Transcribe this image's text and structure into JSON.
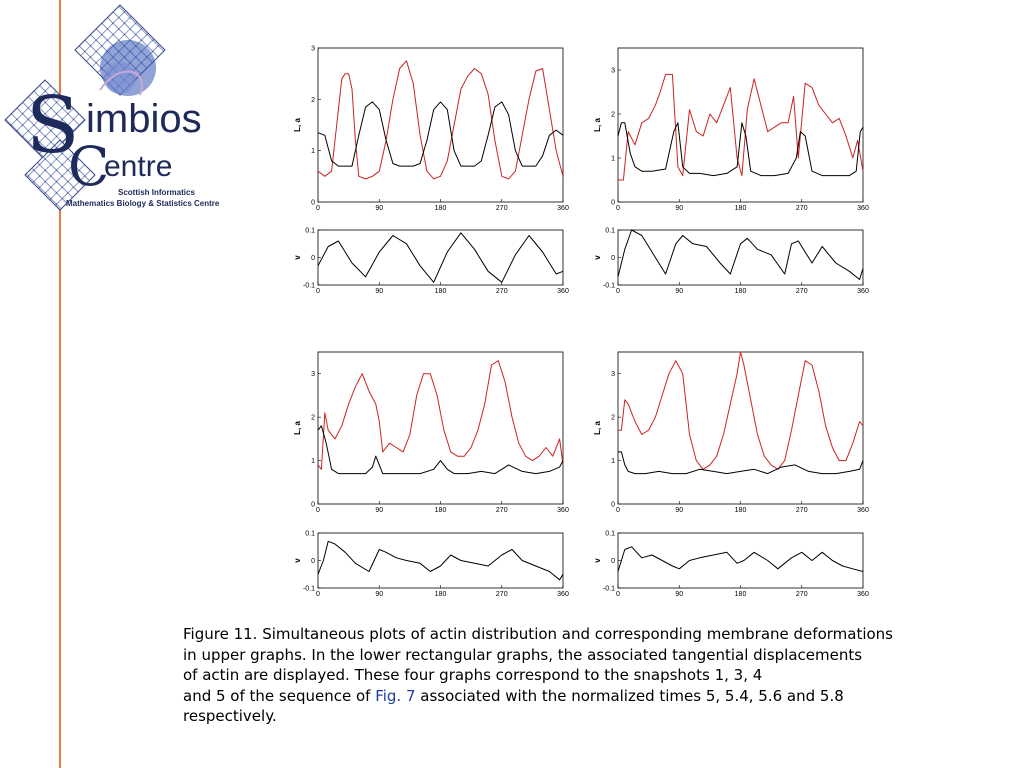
{
  "logo": {
    "line1": "imbios",
    "line2": "entre",
    "letter_s": "S",
    "letter_c": "C",
    "sub1": "Scottish Informatics",
    "sub2": "Mathematics Biology & Statistics Centre",
    "colors": {
      "navy": "#1e2a5a",
      "mesh": "#5a6fb4"
    }
  },
  "caption": {
    "line1": "Figure 11. Simultaneous plots of actin distribution and corresponding membrane deformations",
    "line2": "in upper graphs. In the lower rectangular graphs, the associated tangential displacements",
    "line3": "of actin are displayed. These four graphs correspond to the snapshots 1, 3, 4",
    "line4_pre": "and 5 of the sequence of ",
    "line4_link": "Fig. 7",
    "line4_post": " associated with the normalized times 5, 5.4, 5.6 and 5.8",
    "line5": "respectively."
  },
  "colors": {
    "red_series": "#cc2222",
    "black_series": "#000000",
    "divider": "#f07a40"
  },
  "chart_data": [
    {
      "type": "line",
      "panel": "top-left upper",
      "ylabel": "L, a",
      "xlim": [
        0,
        360
      ],
      "ylim": [
        0,
        3
      ],
      "xticks": [
        "0",
        "90",
        "180",
        "270",
        "360"
      ],
      "yticks": [
        "0",
        "1",
        "2",
        "3"
      ],
      "series": [
        {
          "color": "red",
          "x": [
            0,
            10,
            20,
            30,
            35,
            40,
            45,
            50,
            55,
            60,
            70,
            80,
            90,
            100,
            110,
            120,
            130,
            140,
            150,
            160,
            170,
            180,
            190,
            200,
            210,
            220,
            230,
            240,
            250,
            260,
            270,
            280,
            290,
            300,
            310,
            320,
            330,
            340,
            350,
            360
          ],
          "y": [
            0.6,
            0.5,
            0.6,
            1.8,
            2.4,
            2.5,
            2.5,
            2.2,
            1.2,
            0.5,
            0.45,
            0.5,
            0.6,
            1.2,
            2.0,
            2.6,
            2.75,
            2.3,
            1.3,
            0.6,
            0.45,
            0.5,
            0.8,
            1.5,
            2.2,
            2.45,
            2.6,
            2.5,
            2.1,
            1.2,
            0.5,
            0.45,
            0.6,
            1.3,
            2.0,
            2.55,
            2.6,
            1.8,
            1.0,
            0.5
          ]
        },
        {
          "color": "black",
          "x": [
            0,
            10,
            20,
            30,
            40,
            50,
            60,
            70,
            80,
            90,
            100,
            110,
            120,
            130,
            140,
            150,
            160,
            170,
            180,
            190,
            200,
            210,
            220,
            230,
            240,
            250,
            260,
            270,
            280,
            290,
            300,
            310,
            320,
            330,
            340,
            350,
            360
          ],
          "y": [
            1.35,
            1.3,
            0.8,
            0.7,
            0.7,
            0.7,
            1.3,
            1.85,
            1.95,
            1.8,
            1.2,
            0.75,
            0.7,
            0.7,
            0.7,
            0.75,
            1.2,
            1.8,
            1.95,
            1.8,
            1.0,
            0.7,
            0.7,
            0.7,
            0.8,
            1.3,
            1.85,
            1.95,
            1.7,
            1.0,
            0.7,
            0.7,
            0.7,
            0.9,
            1.3,
            1.4,
            1.3
          ]
        }
      ]
    },
    {
      "type": "line",
      "panel": "top-left lower",
      "ylabel": "v",
      "xlim": [
        0,
        360
      ],
      "ylim": [
        -0.1,
        0.1
      ],
      "xticks": [
        "0",
        "90",
        "180",
        "270",
        "360"
      ],
      "yticks": [
        "-0.1",
        "0",
        "0.1"
      ],
      "series": [
        {
          "color": "black",
          "x": [
            0,
            15,
            30,
            50,
            70,
            90,
            110,
            130,
            150,
            170,
            190,
            210,
            230,
            250,
            270,
            290,
            310,
            330,
            350,
            360
          ],
          "y": [
            -0.03,
            0.04,
            0.06,
            -0.02,
            -0.07,
            0.02,
            0.08,
            0.05,
            -0.03,
            -0.09,
            0.02,
            0.09,
            0.03,
            -0.05,
            -0.09,
            0.01,
            0.08,
            0.02,
            -0.06,
            -0.05
          ]
        }
      ]
    },
    {
      "type": "line",
      "panel": "top-right upper",
      "ylabel": "L, a",
      "xlim": [
        0,
        360
      ],
      "ylim": [
        0,
        3.5
      ],
      "xticks": [
        "0",
        "90",
        "180",
        "270",
        "360"
      ],
      "yticks": [
        "0",
        "1",
        "2",
        "3"
      ],
      "series": [
        {
          "color": "red",
          "x": [
            0,
            8,
            15,
            25,
            35,
            45,
            55,
            62,
            70,
            80,
            88,
            95,
            105,
            115,
            125,
            135,
            145,
            155,
            165,
            175,
            182,
            190,
            200,
            210,
            220,
            230,
            240,
            250,
            258,
            265,
            275,
            285,
            295,
            305,
            315,
            325,
            335,
            345,
            352,
            360
          ],
          "y": [
            0.5,
            0.5,
            1.6,
            1.3,
            1.8,
            1.9,
            2.2,
            2.5,
            2.9,
            2.9,
            0.8,
            0.6,
            2.1,
            1.6,
            1.5,
            2.0,
            1.8,
            2.2,
            2.6,
            1.0,
            0.6,
            2.1,
            2.8,
            2.2,
            1.6,
            1.7,
            1.8,
            1.8,
            2.4,
            1.0,
            2.7,
            2.6,
            2.2,
            2.0,
            1.8,
            1.9,
            1.5,
            1.0,
            1.4,
            0.7
          ]
        },
        {
          "color": "black",
          "x": [
            0,
            5,
            10,
            18,
            25,
            35,
            50,
            70,
            82,
            88,
            95,
            105,
            120,
            140,
            160,
            175,
            182,
            188,
            195,
            210,
            230,
            250,
            262,
            268,
            275,
            285,
            300,
            320,
            340,
            350,
            356,
            360
          ],
          "y": [
            1.5,
            1.8,
            1.8,
            1.1,
            0.8,
            0.7,
            0.7,
            0.75,
            1.6,
            1.8,
            0.8,
            0.65,
            0.65,
            0.6,
            0.65,
            0.8,
            1.8,
            1.5,
            0.7,
            0.6,
            0.6,
            0.65,
            1.0,
            1.6,
            1.5,
            0.7,
            0.6,
            0.6,
            0.6,
            0.7,
            1.6,
            1.7
          ]
        }
      ]
    },
    {
      "type": "line",
      "panel": "top-right lower",
      "ylabel": "v",
      "xlim": [
        0,
        360
      ],
      "ylim": [
        -0.1,
        0.1
      ],
      "xticks": [
        "0",
        "90",
        "180",
        "270",
        "360"
      ],
      "yticks": [
        "-0.1",
        "0",
        "0.1"
      ],
      "series": [
        {
          "color": "black",
          "x": [
            0,
            10,
            20,
            35,
            55,
            70,
            85,
            95,
            110,
            130,
            150,
            165,
            180,
            190,
            205,
            225,
            245,
            255,
            265,
            285,
            300,
            320,
            340,
            355,
            360
          ],
          "y": [
            -0.07,
            0.03,
            0.1,
            0.08,
            0.0,
            -0.06,
            0.05,
            0.08,
            0.05,
            0.04,
            -0.02,
            -0.06,
            0.05,
            0.07,
            0.03,
            0.01,
            -0.06,
            0.05,
            0.06,
            -0.02,
            0.04,
            -0.02,
            -0.05,
            -0.08,
            -0.04
          ]
        }
      ]
    },
    {
      "type": "line",
      "panel": "bottom-left upper",
      "ylabel": "L, a",
      "xlim": [
        0,
        360
      ],
      "ylim": [
        0,
        3.5
      ],
      "xticks": [
        "0",
        "90",
        "180",
        "270",
        "360"
      ],
      "yticks": [
        "0",
        "1",
        "2",
        "3"
      ],
      "series": [
        {
          "color": "red",
          "x": [
            0,
            5,
            10,
            15,
            25,
            35,
            45,
            55,
            65,
            75,
            85,
            90,
            95,
            105,
            115,
            125,
            135,
            145,
            155,
            165,
            175,
            185,
            195,
            205,
            215,
            225,
            235,
            245,
            255,
            265,
            275,
            285,
            295,
            305,
            315,
            325,
            335,
            345,
            355,
            360
          ],
          "y": [
            0.9,
            0.8,
            2.1,
            1.7,
            1.5,
            1.8,
            2.3,
            2.7,
            3.0,
            2.6,
            2.3,
            1.9,
            1.2,
            1.4,
            1.3,
            1.2,
            1.6,
            2.5,
            3.0,
            3.0,
            2.5,
            1.7,
            1.2,
            1.1,
            1.1,
            1.3,
            1.7,
            2.3,
            3.2,
            3.3,
            2.8,
            2.0,
            1.4,
            1.1,
            1.0,
            1.1,
            1.3,
            1.1,
            1.5,
            0.9
          ]
        },
        {
          "color": "black",
          "x": [
            0,
            5,
            12,
            20,
            30,
            50,
            70,
            80,
            85,
            90,
            95,
            105,
            130,
            150,
            170,
            180,
            190,
            200,
            220,
            240,
            260,
            270,
            280,
            300,
            320,
            340,
            355,
            360
          ],
          "y": [
            1.7,
            1.8,
            1.4,
            0.8,
            0.7,
            0.7,
            0.7,
            0.85,
            1.1,
            0.9,
            0.7,
            0.7,
            0.7,
            0.7,
            0.8,
            1.0,
            0.8,
            0.7,
            0.7,
            0.75,
            0.7,
            0.8,
            0.9,
            0.75,
            0.7,
            0.75,
            0.85,
            1.0
          ]
        }
      ]
    },
    {
      "type": "line",
      "panel": "bottom-left lower",
      "ylabel": "v",
      "xlim": [
        0,
        360
      ],
      "ylim": [
        -0.1,
        0.1
      ],
      "xticks": [
        "0",
        "90",
        "180",
        "270",
        "360"
      ],
      "yticks": [
        "-0.1",
        "0",
        "0.1"
      ],
      "series": [
        {
          "color": "black",
          "x": [
            0,
            8,
            15,
            25,
            40,
            55,
            75,
            90,
            100,
            115,
            130,
            150,
            165,
            180,
            195,
            210,
            230,
            250,
            270,
            285,
            300,
            320,
            340,
            355,
            360
          ],
          "y": [
            -0.05,
            0.0,
            0.07,
            0.06,
            0.03,
            -0.01,
            -0.04,
            0.04,
            0.03,
            0.01,
            0.0,
            -0.01,
            -0.04,
            -0.02,
            0.02,
            0.0,
            -0.01,
            -0.02,
            0.02,
            0.04,
            0.0,
            -0.02,
            -0.04,
            -0.07,
            -0.05
          ]
        }
      ]
    },
    {
      "type": "line",
      "panel": "bottom-right upper",
      "ylabel": "L, a",
      "xlim": [
        0,
        360
      ],
      "ylim": [
        0,
        3.5
      ],
      "xticks": [
        "0",
        "90",
        "180",
        "270",
        "360"
      ],
      "yticks": [
        "0",
        "1",
        "2",
        "3"
      ],
      "series": [
        {
          "color": "red",
          "x": [
            0,
            5,
            10,
            15,
            25,
            35,
            45,
            55,
            65,
            75,
            85,
            95,
            105,
            115,
            125,
            135,
            145,
            155,
            165,
            175,
            180,
            185,
            195,
            205,
            215,
            225,
            235,
            245,
            255,
            265,
            275,
            285,
            295,
            305,
            315,
            325,
            335,
            345,
            355,
            360
          ],
          "y": [
            1.7,
            1.7,
            2.4,
            2.3,
            1.9,
            1.6,
            1.7,
            2.0,
            2.5,
            3.0,
            3.3,
            3.0,
            1.6,
            1.0,
            0.8,
            0.9,
            1.1,
            1.6,
            2.3,
            3.0,
            3.5,
            3.2,
            2.4,
            1.6,
            1.1,
            0.9,
            0.8,
            1.0,
            1.7,
            2.5,
            3.3,
            3.2,
            2.6,
            1.8,
            1.3,
            1.0,
            1.0,
            1.4,
            1.9,
            1.8
          ]
        },
        {
          "color": "black",
          "x": [
            0,
            5,
            10,
            15,
            25,
            40,
            60,
            80,
            100,
            120,
            140,
            160,
            180,
            200,
            220,
            240,
            260,
            280,
            300,
            320,
            340,
            355,
            360
          ],
          "y": [
            1.2,
            1.2,
            0.9,
            0.75,
            0.7,
            0.7,
            0.75,
            0.7,
            0.7,
            0.8,
            0.75,
            0.7,
            0.75,
            0.8,
            0.7,
            0.85,
            0.9,
            0.75,
            0.7,
            0.7,
            0.75,
            0.8,
            1.0
          ]
        }
      ]
    },
    {
      "type": "line",
      "panel": "bottom-right lower",
      "ylabel": "v",
      "xlim": [
        0,
        360
      ],
      "ylim": [
        -0.1,
        0.1
      ],
      "xticks": [
        "0",
        "90",
        "180",
        "270",
        "360"
      ],
      "yticks": [
        "-0.1",
        "0",
        "0.1"
      ],
      "series": [
        {
          "color": "black",
          "x": [
            0,
            10,
            20,
            35,
            50,
            65,
            80,
            90,
            105,
            120,
            140,
            160,
            175,
            185,
            200,
            220,
            235,
            255,
            270,
            285,
            300,
            315,
            330,
            345,
            360
          ],
          "y": [
            -0.04,
            0.04,
            0.05,
            0.01,
            0.02,
            0.0,
            -0.02,
            -0.03,
            0.0,
            0.01,
            0.02,
            0.03,
            -0.01,
            0.0,
            0.03,
            0.0,
            -0.03,
            0.01,
            0.03,
            0.0,
            0.03,
            0.0,
            -0.02,
            -0.03,
            -0.04
          ]
        }
      ]
    }
  ]
}
